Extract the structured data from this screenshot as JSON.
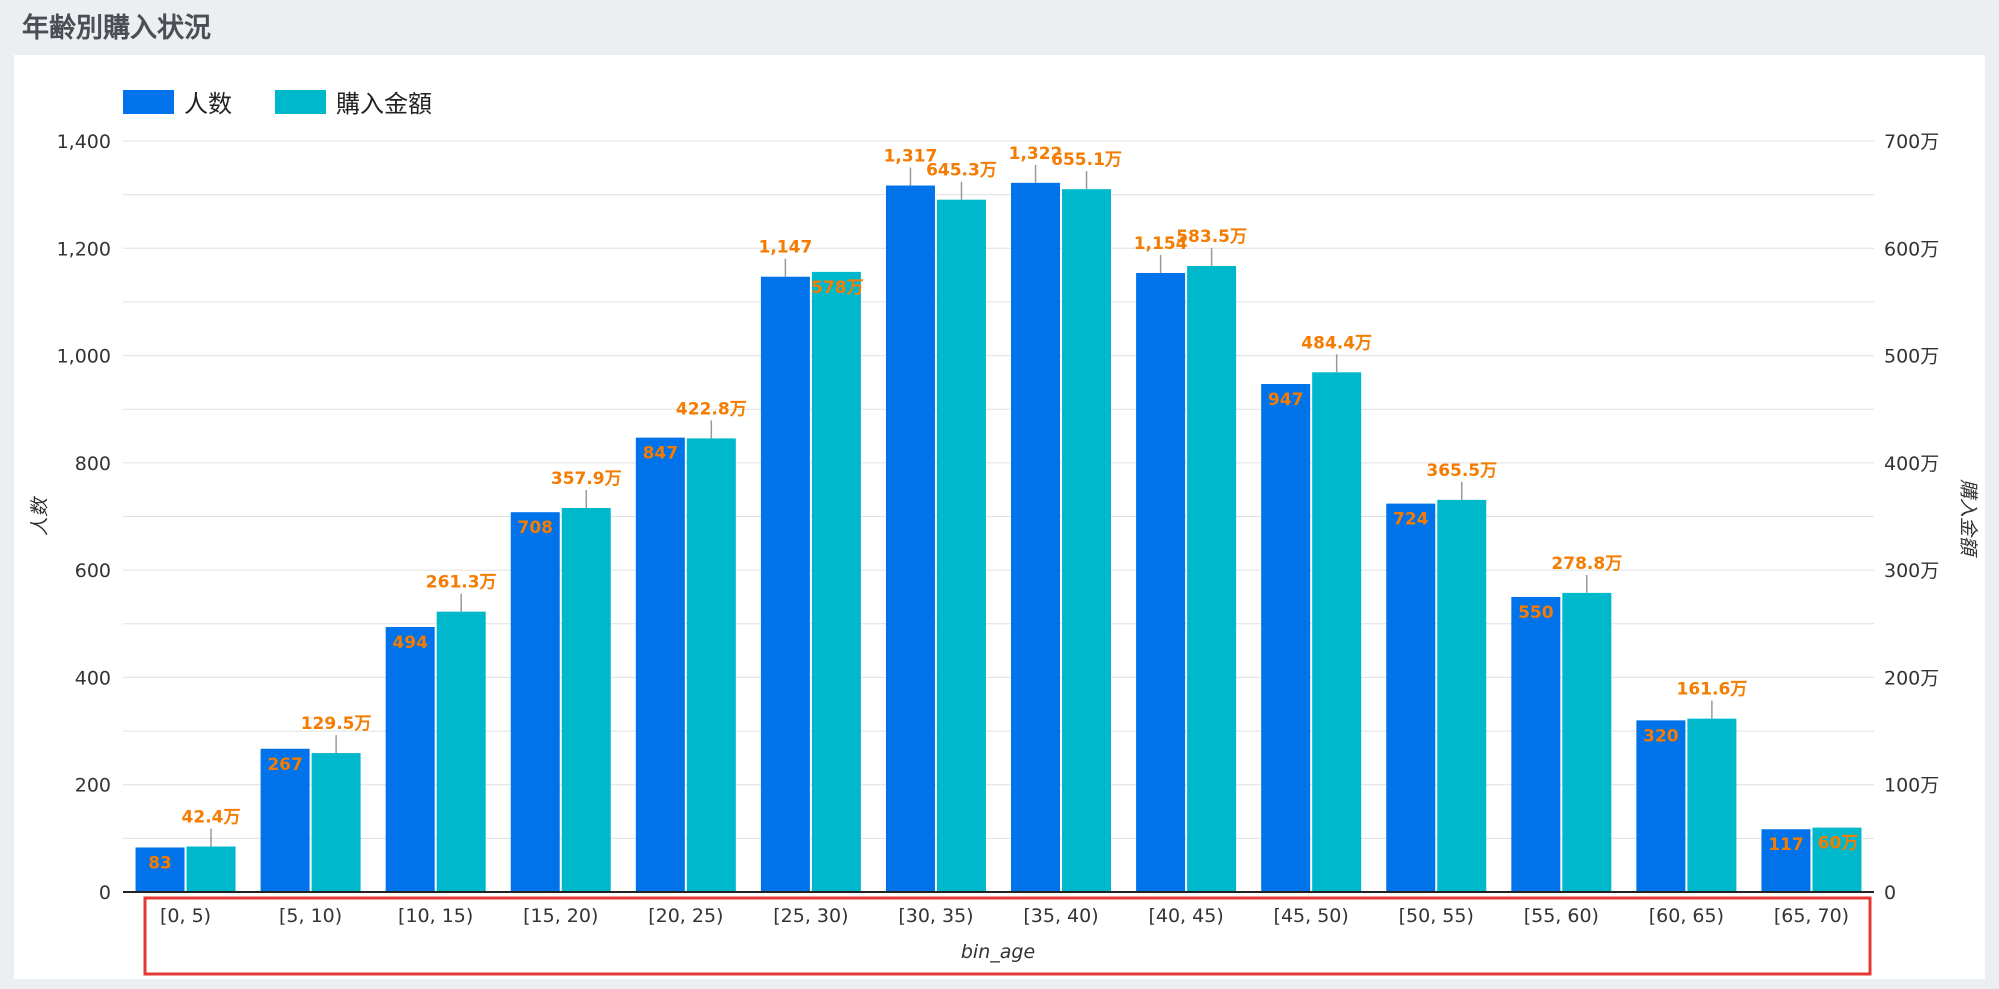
{
  "page": {
    "title": "年齢別購入状況"
  },
  "colors": {
    "series1": "#0073ea",
    "series2": "#00b8cc",
    "label": "#f57c00",
    "highlight_border": "#e53935",
    "grid": "#e0e0e0"
  },
  "chart_data": {
    "type": "bar",
    "title": "",
    "xlabel": "bin_age",
    "ylabel": "人数",
    "ylabel_right": "購入金額",
    "categories": [
      "[0, 5)",
      "[5, 10)",
      "[10, 15)",
      "[15, 20)",
      "[20, 25)",
      "[25, 30)",
      "[30, 35)",
      "[35, 40)",
      "[40, 45)",
      "[45, 50)",
      "[50, 55)",
      "[55, 60)",
      "[60, 65)",
      "[65, 70)"
    ],
    "ylim": [
      0,
      1400
    ],
    "ylim_right": [
      0,
      7000000
    ],
    "yticks": [
      "0",
      "200",
      "400",
      "600",
      "800",
      "1,000",
      "1,200",
      "1,400"
    ],
    "yticks_right": [
      "0",
      "100万",
      "200万",
      "300万",
      "400万",
      "500万",
      "600万",
      "700万"
    ],
    "legend_position": "top-left",
    "grid": true,
    "series": [
      {
        "name": "人数",
        "axis": "left",
        "values": [
          83,
          267,
          494,
          708,
          847,
          1147,
          1317,
          1322,
          1154,
          947,
          724,
          550,
          320,
          117
        ],
        "labels": [
          "83",
          "267",
          "494",
          "708",
          "847",
          "1,147",
          "1,317",
          "1,322",
          "1,154",
          "947",
          "724",
          "550",
          "320",
          "117"
        ]
      },
      {
        "name": "購入金額",
        "axis": "right",
        "values": [
          424000,
          1295000,
          2613000,
          3579000,
          4228000,
          5780000,
          6453000,
          6551000,
          5835000,
          4844000,
          3655000,
          2788000,
          1616000,
          600000
        ],
        "labels": [
          "42.4万",
          "129.5万",
          "261.3万",
          "357.9万",
          "422.8万",
          "578万",
          "645.3万",
          "655.1万",
          "583.5万",
          "484.4万",
          "365.5万",
          "278.8万",
          "161.6万",
          "60万"
        ]
      }
    ]
  }
}
